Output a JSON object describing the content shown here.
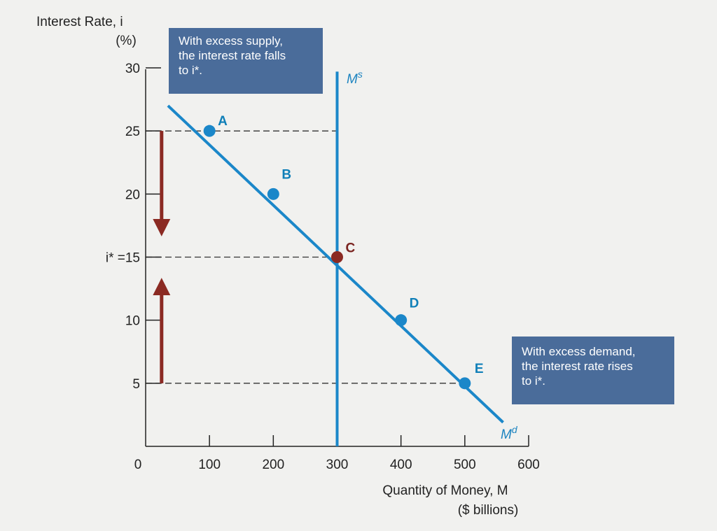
{
  "chart_data": {
    "type": "line",
    "ylabel_line1": "Interest Rate, i",
    "ylabel_line2": "(%)",
    "xlabel_line1": "Quantity of Money, M",
    "xlabel_line2": "($ billions)",
    "xlim": [
      0,
      600
    ],
    "ylim": [
      0,
      30
    ],
    "x_ticks": [
      {
        "value": 0,
        "label": "0"
      },
      {
        "value": 100,
        "label": "100"
      },
      {
        "value": 200,
        "label": "200"
      },
      {
        "value": 300,
        "label": "300"
      },
      {
        "value": 400,
        "label": "400"
      },
      {
        "value": 500,
        "label": "500"
      },
      {
        "value": 600,
        "label": "600"
      }
    ],
    "y_ticks": [
      {
        "value": 5,
        "label": "5"
      },
      {
        "value": 10,
        "label": "10"
      },
      {
        "value": 15,
        "label": "i* =15"
      },
      {
        "value": 20,
        "label": "20"
      },
      {
        "value": 25,
        "label": "25"
      },
      {
        "value": 30,
        "label": "30"
      }
    ],
    "series": [
      {
        "name": "Md",
        "color": "#1b87c9",
        "line": [
          [
            35,
            27
          ],
          [
            560,
            1.9
          ]
        ],
        "points": [
          {
            "label": "A",
            "x": 100,
            "y": 25
          },
          {
            "label": "B",
            "x": 200,
            "y": 20
          },
          {
            "label": "C",
            "x": 300,
            "y": 15
          },
          {
            "label": "D",
            "x": 400,
            "y": 10
          },
          {
            "label": "E",
            "x": 500,
            "y": 5
          }
        ]
      },
      {
        "name": "Ms",
        "color": "#1b87c9",
        "vertical_x": 300,
        "y_range": [
          0,
          29.7
        ]
      }
    ],
    "equilibrium": {
      "label": "C",
      "x": 300,
      "y": 15,
      "color": "#8b2a23"
    },
    "reference_lines": [
      {
        "y": 25,
        "x_end": 300
      },
      {
        "y": 15,
        "x_end": 300
      },
      {
        "y": 5,
        "x_end": 500
      }
    ],
    "arrows": [
      {
        "direction": "down",
        "x": 25,
        "from_y": 25,
        "to_y": 17,
        "color": "#8b2a23"
      },
      {
        "direction": "up",
        "x": 25,
        "from_y": 5,
        "to_y": 13,
        "color": "#8b2a23"
      }
    ],
    "curve_labels": {
      "supply": {
        "main": "M",
        "sup": "s"
      },
      "demand": {
        "main": "M",
        "sup": "d"
      }
    }
  },
  "callouts": {
    "supply": {
      "line1": "With excess supply,",
      "line2": "the interest rate falls",
      "line3": "to i*."
    },
    "demand": {
      "line1": "With excess demand,",
      "line2": "the interest rate rises",
      "line3": "to i*."
    }
  },
  "colors": {
    "curve": "#1b87c9",
    "equilibrium": "#8b2a23",
    "arrow": "#8b2a23",
    "callout_bg": "#4a6c9a"
  }
}
